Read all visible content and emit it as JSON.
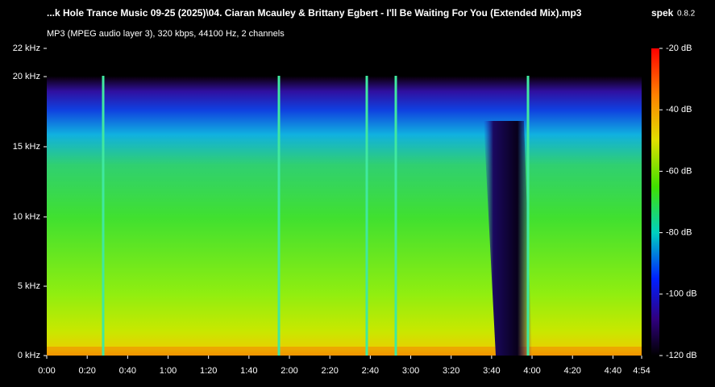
{
  "header": {
    "title": "...k Hole Trance Music 09-25 (2025)\\04. Ciaran Mcauley & Brittany Egbert - I'll Be Waiting For You (Extended Mix).mp3",
    "app_name": "spek",
    "app_version": "0.8.2",
    "subtitle": "MP3 (MPEG audio layer 3), 320 kbps, 44100 Hz, 2 channels"
  },
  "frequency_axis": {
    "labels": [
      "22 kHz",
      "20 kHz",
      "15 kHz",
      "10 kHz",
      "5 kHz",
      "0 kHz"
    ]
  },
  "time_axis": {
    "labels": [
      "0:00",
      "0:20",
      "0:40",
      "1:00",
      "1:20",
      "1:40",
      "2:00",
      "2:20",
      "2:40",
      "3:00",
      "3:20",
      "3:40",
      "4:00",
      "4:20",
      "4:40",
      "4:54"
    ]
  },
  "color_scale": {
    "labels": [
      "-20 dB",
      "-40 dB",
      "-60 dB",
      "-80 dB",
      "-100 dB",
      "-120 dB"
    ]
  }
}
